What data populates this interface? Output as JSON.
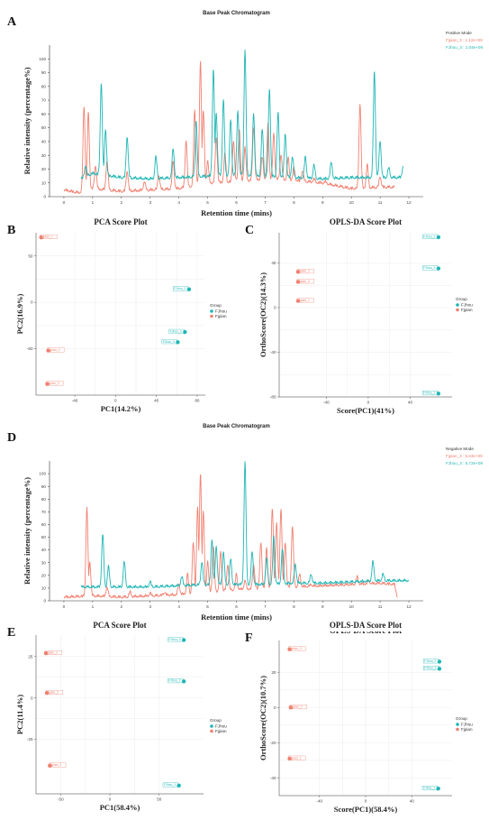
{
  "colors": {
    "salmon": "#f08070",
    "teal": "#1fb5b5",
    "grid": "#ececec",
    "axis": "#333333"
  },
  "panel_letters": [
    "A",
    "B",
    "C",
    "D",
    "E",
    "F"
  ],
  "chart_data": [
    {
      "id": "A",
      "type": "line",
      "title": "Base Peak Chromatogram",
      "xlabel": "Retention time (mins)",
      "ylabel": "Relative intensity (percentage%)",
      "xlim": [
        -0.5,
        12.5
      ],
      "ylim": [
        0,
        110
      ],
      "xticks": [
        "0",
        "1",
        "2",
        "3",
        "4",
        "5",
        "6",
        "7",
        "8",
        "9",
        "10",
        "11",
        "12"
      ],
      "yticks": [
        "0",
        "10",
        "20",
        "30",
        "40",
        "50",
        "60",
        "70",
        "80",
        "90",
        "100"
      ],
      "legend_title": "Positive Mode",
      "series": [
        {
          "name": "Fjpian_3 : 1.12e+09",
          "color": "salmon",
          "baseline": [
            [
              0.0,
              4
            ],
            [
              0.5,
              2
            ],
            [
              1.0,
              5
            ],
            [
              2.0,
              3
            ],
            [
              3.0,
              4
            ],
            [
              4.0,
              5
            ],
            [
              4.5,
              7
            ],
            [
              5.0,
              9
            ],
            [
              6.0,
              10
            ],
            [
              7.0,
              12
            ],
            [
              8.0,
              11
            ],
            [
              9.0,
              9
            ],
            [
              10.0,
              5
            ],
            [
              11.0,
              6
            ],
            [
              11.5,
              6
            ]
          ],
          "peaks": [
            [
              0.7,
              65
            ],
            [
              0.85,
              60
            ],
            [
              1.1,
              22
            ],
            [
              1.5,
              25
            ],
            [
              2.2,
              18
            ],
            [
              2.8,
              10
            ],
            [
              3.3,
              15
            ],
            [
              3.8,
              25
            ],
            [
              4.25,
              40
            ],
            [
              4.55,
              62
            ],
            [
              4.75,
              98
            ],
            [
              4.85,
              62
            ],
            [
              5.0,
              25
            ],
            [
              5.3,
              42
            ],
            [
              5.6,
              30
            ],
            [
              5.9,
              40
            ],
            [
              6.1,
              48
            ],
            [
              6.3,
              35
            ],
            [
              6.6,
              50
            ],
            [
              6.9,
              28
            ],
            [
              7.1,
              52
            ],
            [
              7.3,
              45
            ],
            [
              7.55,
              30
            ],
            [
              7.8,
              27
            ],
            [
              8.0,
              20
            ],
            [
              8.3,
              18
            ],
            [
              8.7,
              12
            ],
            [
              9.1,
              10
            ],
            [
              10.3,
              67
            ],
            [
              10.55,
              22
            ],
            [
              11.0,
              14
            ]
          ]
        },
        {
          "name": "FJhou_3 : 1.04e+09",
          "color": "teal",
          "baseline": [
            [
              0.6,
              12
            ],
            [
              1.0,
              16
            ],
            [
              2.0,
              13
            ],
            [
              3.0,
              12
            ],
            [
              4.0,
              13
            ],
            [
              5.0,
              14
            ],
            [
              6.0,
              15
            ],
            [
              7.0,
              14
            ],
            [
              8.0,
              13
            ],
            [
              9.0,
              12
            ],
            [
              10.0,
              13
            ],
            [
              11.0,
              13
            ],
            [
              11.8,
              13
            ]
          ],
          "peaks": [
            [
              0.75,
              22
            ],
            [
              1.3,
              82
            ],
            [
              1.45,
              48
            ],
            [
              2.2,
              43
            ],
            [
              3.2,
              28
            ],
            [
              3.8,
              34
            ],
            [
              4.6,
              55
            ],
            [
              5.2,
              92
            ],
            [
              5.3,
              60
            ],
            [
              5.55,
              70
            ],
            [
              5.8,
              55
            ],
            [
              6.05,
              62
            ],
            [
              6.3,
              105
            ],
            [
              6.6,
              60
            ],
            [
              6.9,
              48
            ],
            [
              7.15,
              78
            ],
            [
              7.45,
              60
            ],
            [
              7.7,
              45
            ],
            [
              7.95,
              28
            ],
            [
              8.4,
              28
            ],
            [
              8.7,
              22
            ],
            [
              9.3,
              24
            ],
            [
              10.8,
              90
            ],
            [
              11.0,
              40
            ],
            [
              11.3,
              20
            ],
            [
              11.8,
              21
            ]
          ]
        }
      ]
    },
    {
      "id": "B",
      "type": "scatter",
      "title": "PCA Score Plot",
      "xlabel": "PC1(14.2%)",
      "ylabel": "PC2(16.9%)",
      "xlim": [
        -78,
        88
      ],
      "ylim": [
        -100,
        75
      ],
      "xticks": [
        -40,
        0,
        40,
        80
      ],
      "yticks": [
        -50,
        0,
        50
      ],
      "legend_title": "Group",
      "legend": [
        "FJhou",
        "Fjpian"
      ],
      "points": [
        {
          "group": "Fjpian",
          "x": -73,
          "y": 70,
          "label": "Fjpian_1"
        },
        {
          "group": "Fjpian",
          "x": -66,
          "y": -52,
          "label": "Fjpian_2"
        },
        {
          "group": "Fjpian",
          "x": -67,
          "y": -88,
          "label": "Fjpian_3"
        },
        {
          "group": "FJhou",
          "x": 72,
          "y": 14,
          "label": "FJhou_1"
        },
        {
          "group": "FJhou",
          "x": 68,
          "y": -32,
          "label": "FJhou_2"
        },
        {
          "group": "FJhou",
          "x": 61,
          "y": -43,
          "label": "FJhou_3"
        }
      ]
    },
    {
      "id": "C",
      "type": "scatter",
      "title": "OPLS-DA Score Plot",
      "xlabel": "Score(PC1)(41%)",
      "ylabel": "OrthoScore(OC2)(14.3%)",
      "xlim": [
        -85,
        80
      ],
      "ylim": [
        -80,
        67
      ],
      "xticks": [
        -40,
        0,
        40
      ],
      "yticks": [
        -80,
        -40,
        0,
        40
      ],
      "legend_title": "Group",
      "legend": [
        "FJhou",
        "Fjpian"
      ],
      "points": [
        {
          "group": "FJhou",
          "x": 67,
          "y": 63,
          "label": "FJhou_2"
        },
        {
          "group": "FJhou",
          "x": 67,
          "y": 35,
          "label": "FJhou_3"
        },
        {
          "group": "FJhou",
          "x": 67,
          "y": -77,
          "label": "FJhou_1"
        },
        {
          "group": "Fjpian",
          "x": -67,
          "y": 32,
          "label": "Fjpian_2"
        },
        {
          "group": "Fjpian",
          "x": -67,
          "y": 23,
          "label": "Fjpian_4"
        },
        {
          "group": "Fjpian",
          "x": -67,
          "y": 6,
          "label": "Fjpian_1"
        }
      ]
    },
    {
      "id": "D",
      "type": "line",
      "title": "Base Peak Chromatogram",
      "xlabel": "Retention time (mins)",
      "ylabel": "Relative intensity (percentage%)",
      "xlim": [
        -0.5,
        12.5
      ],
      "ylim": [
        0,
        110
      ],
      "xticks": [
        "0",
        "1",
        "2",
        "3",
        "4",
        "5",
        "6",
        "7",
        "8",
        "9",
        "10",
        "11",
        "12"
      ],
      "yticks": [
        "0",
        "10",
        "20",
        "30",
        "40",
        "50",
        "60",
        "70",
        "80",
        "90",
        "100"
      ],
      "legend_title": "Negative Mode",
      "series": [
        {
          "name": "Fjpian_3 : 5.63e+09",
          "color": "salmon",
          "baseline": [
            [
              0.0,
              2
            ],
            [
              1.0,
              3
            ],
            [
              2.0,
              2
            ],
            [
              3.0,
              3
            ],
            [
              4.0,
              4
            ],
            [
              5.0,
              6
            ],
            [
              6.0,
              8
            ],
            [
              7.0,
              9
            ],
            [
              8.0,
              10
            ],
            [
              9.0,
              11
            ],
            [
              10.0,
              12
            ],
            [
              11.0,
              13
            ],
            [
              11.5,
              12
            ],
            [
              11.6,
              2
            ]
          ],
          "peaks": [
            [
              0.8,
              72
            ],
            [
              0.9,
              30
            ],
            [
              1.5,
              10
            ],
            [
              2.3,
              6
            ],
            [
              3.0,
              5
            ],
            [
              3.5,
              6
            ],
            [
              4.0,
              12
            ],
            [
              4.3,
              20
            ],
            [
              4.5,
              45
            ],
            [
              4.65,
              72
            ],
            [
              4.75,
              100
            ],
            [
              4.85,
              70
            ],
            [
              5.0,
              30
            ],
            [
              5.2,
              42
            ],
            [
              5.45,
              38
            ],
            [
              5.7,
              28
            ],
            [
              6.0,
              20
            ],
            [
              6.3,
              15
            ],
            [
              6.6,
              28
            ],
            [
              6.85,
              45
            ],
            [
              7.05,
              40
            ],
            [
              7.25,
              72
            ],
            [
              7.4,
              60
            ],
            [
              7.55,
              72
            ],
            [
              7.7,
              45
            ],
            [
              7.95,
              58
            ],
            [
              8.2,
              20
            ],
            [
              8.6,
              12
            ],
            [
              9.0,
              10
            ],
            [
              10.2,
              18
            ],
            [
              10.6,
              15
            ]
          ]
        },
        {
          "name": "FJhou_3 : 5.72e+09",
          "color": "teal",
          "baseline": [
            [
              0.6,
              10
            ],
            [
              1.0,
              10
            ],
            [
              2.0,
              10
            ],
            [
              3.0,
              10
            ],
            [
              4.0,
              11
            ],
            [
              5.0,
              12
            ],
            [
              6.0,
              12
            ],
            [
              7.0,
              12
            ],
            [
              8.0,
              13
            ],
            [
              9.0,
              13
            ],
            [
              10.0,
              14
            ],
            [
              11.0,
              15
            ],
            [
              12.0,
              15
            ]
          ],
          "peaks": [
            [
              1.35,
              52
            ],
            [
              1.55,
              26
            ],
            [
              2.1,
              30
            ],
            [
              3.0,
              14
            ],
            [
              4.1,
              18
            ],
            [
              4.8,
              30
            ],
            [
              5.15,
              48
            ],
            [
              5.3,
              42
            ],
            [
              5.55,
              38
            ],
            [
              5.8,
              32
            ],
            [
              6.3,
              108
            ],
            [
              6.55,
              38
            ],
            [
              7.05,
              32
            ],
            [
              7.3,
              50
            ],
            [
              7.6,
              40
            ],
            [
              8.05,
              28
            ],
            [
              8.6,
              20
            ],
            [
              10.75,
              30
            ],
            [
              11.1,
              20
            ]
          ]
        }
      ]
    },
    {
      "id": "E",
      "type": "scatter",
      "title": "PCA Score Plot",
      "xlabel": "PC1(58.4%)",
      "ylabel": "PC2(11.4%)",
      "xlim": [
        -75,
        95
      ],
      "ylim": [
        -58,
        38
      ],
      "xticks": [
        -50,
        0,
        50
      ],
      "yticks": [
        -25,
        0,
        25
      ],
      "legend_title": "Group",
      "legend": [
        "FJhou",
        "Fjpian"
      ],
      "points": [
        {
          "group": "FJhou",
          "x": 75,
          "y": 35,
          "label": "FJhou_3"
        },
        {
          "group": "FJhou",
          "x": 75,
          "y": 10,
          "label": "FJhou_2"
        },
        {
          "group": "FJhou",
          "x": 70,
          "y": -53,
          "label": "FJhou_1"
        },
        {
          "group": "Fjpian",
          "x": -65,
          "y": 27,
          "label": "Fjpian_1"
        },
        {
          "group": "Fjpian",
          "x": -64,
          "y": 3,
          "label": "Fjpian_2"
        },
        {
          "group": "Fjpian",
          "x": -61,
          "y": -41,
          "label": "Fjpian_3"
        }
      ]
    },
    {
      "id": "F",
      "type": "scatter",
      "title": "OPLS-DA Score Plot",
      "xlabel": "Score(PC1)(58.4%)",
      "ylabel": "OrthoScore(OC2)(10.7%)",
      "xlim": [
        -75,
        75
      ],
      "ylim": [
        -50,
        38
      ],
      "xticks": [
        -40,
        0,
        40
      ],
      "yticks": [
        -40,
        -20,
        0,
        20
      ],
      "legend_title": "Group",
      "legend": [
        "FJhou",
        "Fjpian"
      ],
      "points": [
        {
          "group": "FJhou",
          "x": 64,
          "y": 26,
          "label": "FJhou_2"
        },
        {
          "group": "FJhou",
          "x": 64,
          "y": 22,
          "label": "FJhou_3"
        },
        {
          "group": "FJhou",
          "x": 63,
          "y": -46,
          "label": "FJhou_1"
        },
        {
          "group": "Fjpian",
          "x": -66,
          "y": 33,
          "label": "Fjpian_3"
        },
        {
          "group": "Fjpian",
          "x": -65,
          "y": 0,
          "label": "Fjpian_2"
        },
        {
          "group": "Fjpian",
          "x": -66,
          "y": -29,
          "label": "Fjpian_1"
        }
      ]
    }
  ]
}
